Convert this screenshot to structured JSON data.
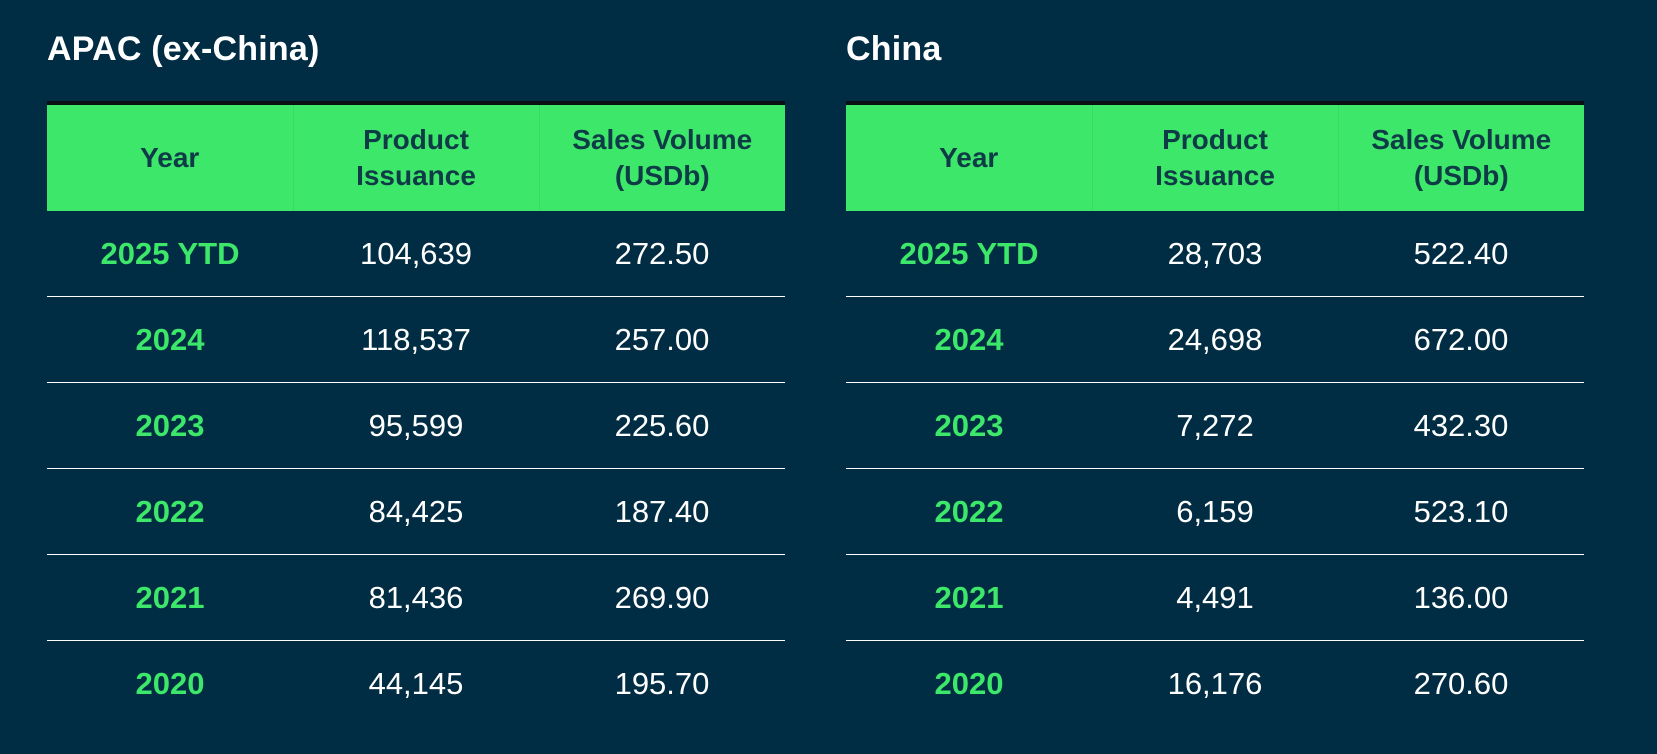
{
  "colors": {
    "background": "#002d43",
    "header_bg": "#3de76a",
    "header_text": "#0f3b47",
    "year_text": "#3de76a",
    "value_text": "#ffffff"
  },
  "tables": [
    {
      "title": "APAC (ex-China)",
      "headers": {
        "year": "Year",
        "issuance_line1": "Product",
        "issuance_line2": "Issuance",
        "volume_line1": "Sales Volume",
        "volume_line2": "(USDb)"
      },
      "rows": [
        {
          "year": "2025 YTD",
          "issuance": "104,639",
          "volume": "272.50"
        },
        {
          "year": "2024",
          "issuance": "118,537",
          "volume": "257.00"
        },
        {
          "year": "2023",
          "issuance": "95,599",
          "volume": "225.60"
        },
        {
          "year": "2022",
          "issuance": "84,425",
          "volume": "187.40"
        },
        {
          "year": "2021",
          "issuance": "81,436",
          "volume": "269.90"
        },
        {
          "year": "2020",
          "issuance": "44,145",
          "volume": "195.70"
        }
      ]
    },
    {
      "title": "China",
      "headers": {
        "year": "Year",
        "issuance_line1": "Product",
        "issuance_line2": "Issuance",
        "volume_line1": "Sales Volume",
        "volume_line2": "(USDb)"
      },
      "rows": [
        {
          "year": "2025 YTD",
          "issuance": "28,703",
          "volume": "522.40"
        },
        {
          "year": "2024",
          "issuance": "24,698",
          "volume": "672.00"
        },
        {
          "year": "2023",
          "issuance": "7,272",
          "volume": "432.30"
        },
        {
          "year": "2022",
          "issuance": "6,159",
          "volume": "523.10"
        },
        {
          "year": "2021",
          "issuance": "4,491",
          "volume": "136.00"
        },
        {
          "year": "2020",
          "issuance": "16,176",
          "volume": "270.60"
        }
      ]
    }
  ]
}
